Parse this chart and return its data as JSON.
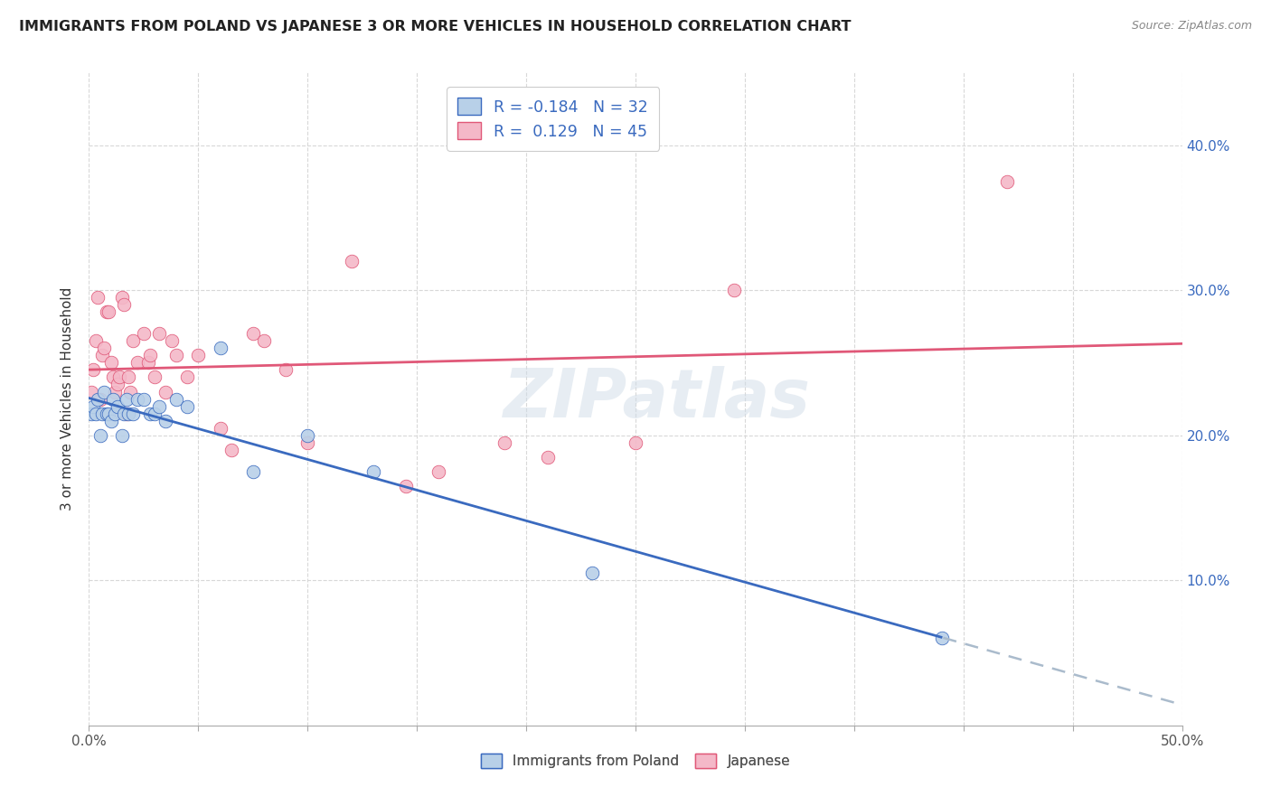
{
  "title": "IMMIGRANTS FROM POLAND VS JAPANESE 3 OR MORE VEHICLES IN HOUSEHOLD CORRELATION CHART",
  "source": "Source: ZipAtlas.com",
  "ylabel": "3 or more Vehicles in Household",
  "xlim": [
    0.0,
    0.5
  ],
  "ylim": [
    0.0,
    0.45
  ],
  "poland_r": -0.184,
  "poland_n": 32,
  "japanese_r": 0.129,
  "japanese_n": 45,
  "poland_color": "#b8d0e8",
  "japanese_color": "#f4b8c8",
  "poland_line_color": "#3a6abf",
  "japanese_line_color": "#e05878",
  "background_color": "#ffffff",
  "grid_color": "#d8d8d8",
  "watermark": "ZIPatlas",
  "poland_x": [
    0.001,
    0.002,
    0.003,
    0.004,
    0.005,
    0.006,
    0.007,
    0.008,
    0.009,
    0.01,
    0.011,
    0.012,
    0.013,
    0.015,
    0.016,
    0.017,
    0.018,
    0.02,
    0.022,
    0.025,
    0.028,
    0.03,
    0.032,
    0.035,
    0.04,
    0.045,
    0.06,
    0.075,
    0.1,
    0.13,
    0.23,
    0.39
  ],
  "poland_y": [
    0.215,
    0.22,
    0.215,
    0.225,
    0.2,
    0.215,
    0.23,
    0.215,
    0.215,
    0.21,
    0.225,
    0.215,
    0.22,
    0.2,
    0.215,
    0.225,
    0.215,
    0.215,
    0.225,
    0.225,
    0.215,
    0.215,
    0.22,
    0.21,
    0.225,
    0.22,
    0.26,
    0.175,
    0.2,
    0.175,
    0.105,
    0.06
  ],
  "japanese_x": [
    0.001,
    0.002,
    0.003,
    0.004,
    0.005,
    0.006,
    0.007,
    0.008,
    0.009,
    0.01,
    0.011,
    0.012,
    0.013,
    0.014,
    0.015,
    0.016,
    0.017,
    0.018,
    0.019,
    0.02,
    0.022,
    0.025,
    0.027,
    0.028,
    0.03,
    0.032,
    0.035,
    0.038,
    0.04,
    0.045,
    0.05,
    0.06,
    0.065,
    0.075,
    0.08,
    0.09,
    0.1,
    0.12,
    0.145,
    0.16,
    0.19,
    0.21,
    0.25,
    0.295,
    0.42
  ],
  "japanese_y": [
    0.23,
    0.245,
    0.265,
    0.295,
    0.225,
    0.255,
    0.26,
    0.285,
    0.285,
    0.25,
    0.24,
    0.23,
    0.235,
    0.24,
    0.295,
    0.29,
    0.215,
    0.24,
    0.23,
    0.265,
    0.25,
    0.27,
    0.25,
    0.255,
    0.24,
    0.27,
    0.23,
    0.265,
    0.255,
    0.24,
    0.255,
    0.205,
    0.19,
    0.27,
    0.265,
    0.245,
    0.195,
    0.32,
    0.165,
    0.175,
    0.195,
    0.185,
    0.195,
    0.3,
    0.375
  ]
}
